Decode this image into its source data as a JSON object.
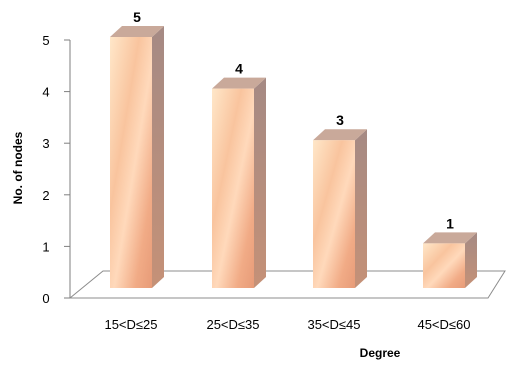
{
  "chart_data": {
    "type": "bar",
    "categories": [
      "15<D≤25",
      "25<D≤35",
      "35<D≤45",
      "45<D≤60"
    ],
    "values": [
      5,
      4,
      3,
      1
    ],
    "xlabel": "Degree",
    "ylabel": "No. of nodes",
    "ylim": [
      0,
      5
    ],
    "yticks": [
      "0",
      "1",
      "2",
      "3",
      "4",
      "5"
    ],
    "data_labels": [
      "5",
      "4",
      "3",
      "1"
    ],
    "grid": false,
    "legend": "none",
    "colors": {
      "bar_front_light": "#ffe7c9",
      "bar_front_mid": "#f5b48a",
      "bar_front_dark": "#e8a07c",
      "bar_top": "#c9a99a",
      "bar_side": "#b08a78",
      "floor": "#ffffff",
      "axis": "#7f7f7f"
    },
    "style": "3d"
  }
}
